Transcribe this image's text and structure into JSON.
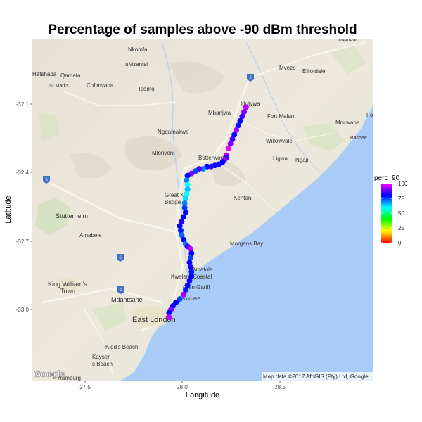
{
  "chart_data": {
    "type": "scatter",
    "title": "Percentage of samples above -90 dBm threshold",
    "xlabel": "Longitude",
    "ylabel": "Latitude",
    "xlim": [
      27.2,
      28.95
    ],
    "ylim": [
      -33.3,
      -31.8
    ],
    "x_ticks": [
      27.5,
      28.0,
      28.5
    ],
    "x_tick_labels": [
      "27.5",
      "28.0",
      "28.5"
    ],
    "y_ticks": [
      -32.1,
      -32.4,
      -32.7,
      -33.0
    ],
    "y_tick_labels": [
      "-32.1",
      "-32.4",
      "-32.7",
      "-33.0"
    ],
    "color_scale": {
      "name": "perc_90",
      "min": 0,
      "max": 100,
      "ticks": [
        0,
        25,
        50,
        75,
        100
      ],
      "tick_labels": [
        "0",
        "25",
        "50",
        "75",
        "100"
      ],
      "colors": [
        "#ff0000",
        "#ffff00",
        "#00ff00",
        "#00ffff",
        "#0000ff",
        "#ff00ff"
      ]
    },
    "points": [
      {
        "x": 28.3,
        "y": -32.1,
        "v": 95
      },
      {
        "x": 28.29,
        "y": -32.12,
        "v": 90
      },
      {
        "x": 28.28,
        "y": -32.14,
        "v": 85
      },
      {
        "x": 28.27,
        "y": -32.16,
        "v": 80
      },
      {
        "x": 28.26,
        "y": -32.18,
        "v": 78
      },
      {
        "x": 28.25,
        "y": -32.2,
        "v": 92
      },
      {
        "x": 28.24,
        "y": -32.22,
        "v": 80
      },
      {
        "x": 28.23,
        "y": -32.24,
        "v": 85
      },
      {
        "x": 28.22,
        "y": -32.26,
        "v": 90
      },
      {
        "x": 28.21,
        "y": -32.28,
        "v": 98
      },
      {
        "x": 28.2,
        "y": -32.31,
        "v": 95
      },
      {
        "x": 28.2,
        "y": -32.32,
        "v": 85
      },
      {
        "x": 28.19,
        "y": -32.33,
        "v": 92
      },
      {
        "x": 28.18,
        "y": -32.34,
        "v": 80
      },
      {
        "x": 28.16,
        "y": -32.35,
        "v": 82
      },
      {
        "x": 28.14,
        "y": -32.355,
        "v": 80
      },
      {
        "x": 28.12,
        "y": -32.36,
        "v": 85
      },
      {
        "x": 28.1,
        "y": -32.36,
        "v": 80
      },
      {
        "x": 28.08,
        "y": -32.37,
        "v": 70
      },
      {
        "x": 28.06,
        "y": -32.37,
        "v": 85
      },
      {
        "x": 28.04,
        "y": -32.38,
        "v": 75
      },
      {
        "x": 28.02,
        "y": -32.39,
        "v": 90
      },
      {
        "x": 28.0,
        "y": -32.4,
        "v": 80
      },
      {
        "x": 27.995,
        "y": -32.42,
        "v": 70
      },
      {
        "x": 28.0,
        "y": -32.44,
        "v": 60
      },
      {
        "x": 28.0,
        "y": -32.46,
        "v": 65
      },
      {
        "x": 27.995,
        "y": -32.48,
        "v": 60
      },
      {
        "x": 27.99,
        "y": -32.5,
        "v": 62
      },
      {
        "x": 27.985,
        "y": -32.52,
        "v": 70
      },
      {
        "x": 27.985,
        "y": -32.54,
        "v": 75
      },
      {
        "x": 27.99,
        "y": -32.56,
        "v": 80
      },
      {
        "x": 27.98,
        "y": -32.58,
        "v": 80
      },
      {
        "x": 27.97,
        "y": -32.6,
        "v": 82
      },
      {
        "x": 27.96,
        "y": -32.62,
        "v": 80
      },
      {
        "x": 27.965,
        "y": -32.64,
        "v": 78
      },
      {
        "x": 27.97,
        "y": -32.66,
        "v": 72
      },
      {
        "x": 27.98,
        "y": -32.68,
        "v": 80
      },
      {
        "x": 27.99,
        "y": -32.7,
        "v": 70
      },
      {
        "x": 28.0,
        "y": -32.71,
        "v": 85
      },
      {
        "x": 28.015,
        "y": -32.72,
        "v": 95
      },
      {
        "x": 28.02,
        "y": -32.74,
        "v": 80
      },
      {
        "x": 28.015,
        "y": -32.76,
        "v": 75
      },
      {
        "x": 28.01,
        "y": -32.78,
        "v": 80
      },
      {
        "x": 28.015,
        "y": -32.8,
        "v": 82
      },
      {
        "x": 28.02,
        "y": -32.82,
        "v": 78
      },
      {
        "x": 28.02,
        "y": -32.84,
        "v": 80
      },
      {
        "x": 28.01,
        "y": -32.86,
        "v": 82
      },
      {
        "x": 28.0,
        "y": -32.88,
        "v": 80
      },
      {
        "x": 27.99,
        "y": -32.9,
        "v": 78
      },
      {
        "x": 27.98,
        "y": -32.92,
        "v": 92
      },
      {
        "x": 27.96,
        "y": -32.94,
        "v": 75
      },
      {
        "x": 27.94,
        "y": -32.955,
        "v": 80
      },
      {
        "x": 27.925,
        "y": -32.97,
        "v": 80
      },
      {
        "x": 27.915,
        "y": -32.985,
        "v": 90
      },
      {
        "x": 27.905,
        "y": -33.0,
        "v": 80
      },
      {
        "x": 27.905,
        "y": -33.02,
        "v": 95
      }
    ]
  },
  "map": {
    "attribution": "Map data ©2017 AfriGIS (Pty) Ltd, Google",
    "logo": "Google",
    "places": [
      {
        "label": "Nkomfa",
        "size": 8
      },
      {
        "label": "uMzantsi",
        "size": 8
      },
      {
        "label": "Qamata",
        "size": 8
      },
      {
        "label": "Hatshaba",
        "size": 8
      },
      {
        "label": "St Marks",
        "size": 7
      },
      {
        "label": "Cofimvaba",
        "size": 8
      },
      {
        "label": "Tsomo",
        "size": 8
      },
      {
        "label": "Mvezo",
        "size": 8
      },
      {
        "label": "Elliotdale",
        "size": 8
      },
      {
        "label": "Idutywa",
        "size": 8
      },
      {
        "label": "Mbanjwa",
        "size": 8
      },
      {
        "label": "Fort Malan",
        "size": 8
      },
      {
        "label": "Mncwabe",
        "size": 8
      },
      {
        "label": "Bashee",
        "size": 7
      },
      {
        "label": "Ngqamakwe",
        "size": 8
      },
      {
        "label": "Willowvale",
        "size": 8
      },
      {
        "label": "Mlonyeni",
        "size": 8
      },
      {
        "label": "Butterworth",
        "size": 8
      },
      {
        "label": "Ligwa",
        "size": 8
      },
      {
        "label": "Ngaji",
        "size": 8
      },
      {
        "label": "Great Kei",
        "size": 8
      },
      {
        "label": "Bridge",
        "size": 8
      },
      {
        "label": "Kentani",
        "size": 8
      },
      {
        "label": "Stutterheim",
        "size": 9
      },
      {
        "label": "Amabele",
        "size": 8
      },
      {
        "label": "Morgans Bay",
        "size": 8
      },
      {
        "label": "Amatola",
        "size": 8
      },
      {
        "label": "Kwelera Coastal",
        "size": 8
      },
      {
        "label": "King William's",
        "size": 9
      },
      {
        "label": "Town",
        "size": 9
      },
      {
        "label": "Glen Gariff",
        "size": 8
      },
      {
        "label": "Mdantsane",
        "size": 9
      },
      {
        "label": "GONUBIE",
        "size": 6
      },
      {
        "label": "East London",
        "size": 11
      },
      {
        "label": "Kidd's Beach",
        "size": 8
      },
      {
        "label": "Kayser",
        "size": 8
      },
      {
        "label": "s Beach",
        "size": 8
      },
      {
        "label": "Hamburg",
        "size": 8
      },
      {
        "label": "Mqanduli",
        "size": 7
      },
      {
        "label": "Fo",
        "size": 8
      }
    ],
    "road_shields": [
      "2",
      "6",
      "6",
      "2"
    ]
  }
}
